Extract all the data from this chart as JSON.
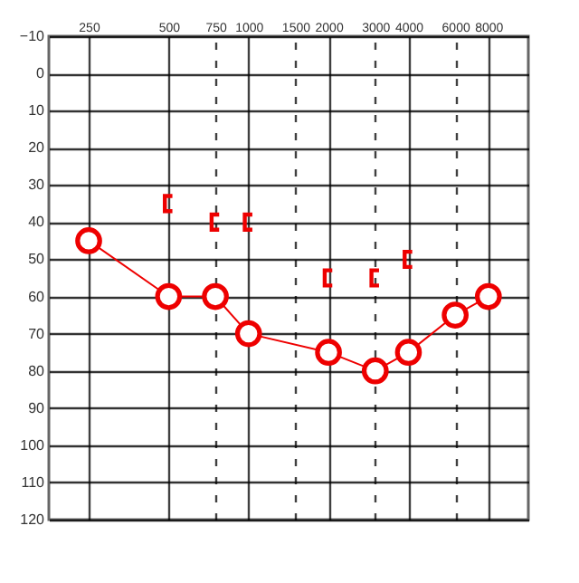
{
  "chart_data": {
    "type": "line",
    "x": [
      250,
      500,
      750,
      1000,
      2000,
      3000,
      4000,
      6000,
      8000
    ],
    "series": [
      {
        "color": "#ee0000",
        "marker": "circle",
        "values": [
          45,
          60,
          60,
          70,
          75,
          80,
          75,
          65,
          60
        ]
      },
      {
        "type": "scatter",
        "color": "#ee0000",
        "x": [
          500,
          750,
          1000,
          2000,
          3000,
          4000
        ],
        "values": [
          35,
          40,
          40,
          55,
          55,
          50
        ]
      }
    ],
    "log": "x",
    "xlim": [
      177,
      11314
    ],
    "xticks": [
      250,
      500,
      750,
      1000,
      1500,
      2000,
      3000,
      4000,
      6000,
      8000
    ],
    "ylim": [
      120,
      -10
    ],
    "yticks": [
      -10,
      0,
      10,
      20,
      30,
      40,
      50,
      60,
      70,
      80,
      90,
      100,
      110,
      120
    ],
    "grid": true
  }
}
